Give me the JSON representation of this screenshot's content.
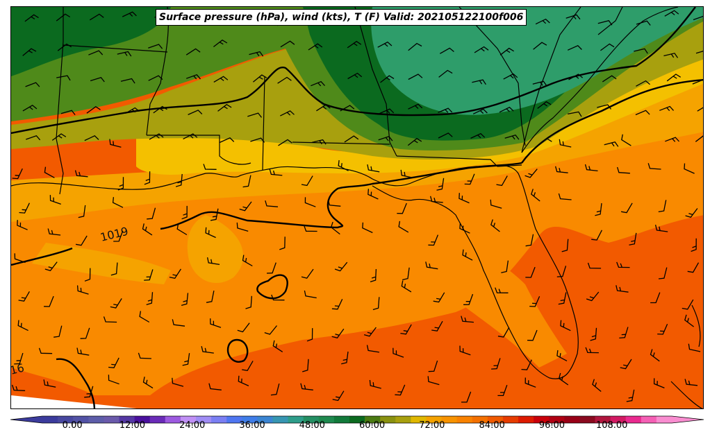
{
  "title": "Surface pressure (hPa), wind (kts), T (F) Valid: 202105122100f006",
  "colorbar": {
    "min": -6,
    "max": 120,
    "step": 3,
    "tick_labels": [
      "0.00",
      "12.00",
      "24.00",
      "36.00",
      "48.00",
      "60.00",
      "72.00",
      "84.00",
      "96.00",
      "108.00"
    ],
    "colors": [
      "#3b3b9c",
      "#47479f",
      "#5252a5",
      "#5d5da9",
      "#6a5aab",
      "#5437a3",
      "#4a109e",
      "#6a2bb8",
      "#9d5ae0",
      "#c090f5",
      "#a08df5",
      "#7b7ff3",
      "#4f76f1",
      "#3f7de8",
      "#3b85d2",
      "#3796b2",
      "#2e9d8a",
      "#248f63",
      "#1f8a4f",
      "#127a3a",
      "#0b6a1f",
      "#4a7a12",
      "#8a9210",
      "#a8a00e",
      "#e0b800",
      "#f4a200",
      "#f89300",
      "#f98200",
      "#f47000",
      "#f05a00",
      "#e73c00",
      "#dd1a00",
      "#c9000a",
      "#b00012",
      "#980016",
      "#8a0a1f",
      "#b0153d",
      "#d21a63",
      "#ea2a8f",
      "#f560b5",
      "#f98dd0"
    ]
  },
  "temperature_regions": [
    {
      "temp": 64,
      "color": "#3a8a2a"
    },
    {
      "temp": 70,
      "color": "#a8a00e"
    },
    {
      "temp": 74,
      "color": "#f4c000"
    },
    {
      "temp": 78,
      "color": "#f5a300"
    },
    {
      "temp": 82,
      "color": "#f98a00"
    },
    {
      "temp": 85,
      "color": "#f25a00"
    },
    {
      "temp": 88,
      "color": "#e73c00"
    },
    {
      "temp": 58,
      "color": "#0b6a1f"
    },
    {
      "temp": 55,
      "color": "#2e9d6a"
    }
  ],
  "isobar_labels": [
    "1019",
    "16"
  ],
  "isobar_color": "#000000",
  "wind_units": "kts"
}
